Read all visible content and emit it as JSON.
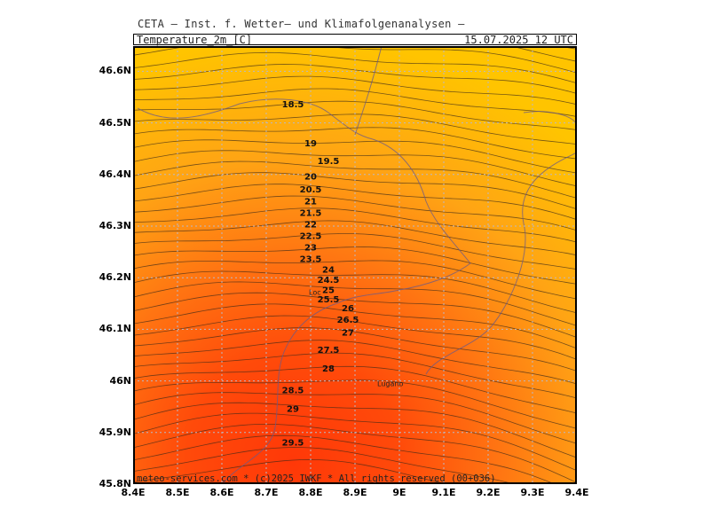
{
  "header": {
    "institute": "CETA — Inst. f. Wetter— und Klimafolgenanalysen —",
    "parameter": "Temperature_2m_[C]",
    "valid_time": "15.07.2025 12 UTC"
  },
  "footer": {
    "credit": "meteo-services.com * (c)2025 IWKF * All rights reserved (00+036)"
  },
  "axes": {
    "x_ticks": [
      "8.4E",
      "8.5E",
      "8.6E",
      "8.7E",
      "8.8E",
      "8.9E",
      "9E",
      "9.1E",
      "9.2E",
      "9.3E",
      "9.4E"
    ],
    "y_ticks": [
      "46.6N",
      "46.5N",
      "46.4N",
      "46.3N",
      "46.2N",
      "46.1N",
      "46N",
      "45.9N",
      "45.8N"
    ]
  },
  "places": [
    {
      "name": "Loc",
      "lon": 8.796,
      "lat": 46.167
    },
    {
      "name": "Lugano",
      "lon": 8.95,
      "lat": 45.99
    }
  ],
  "contour_labels": [
    "18.5",
    "19",
    "19.5",
    "20",
    "20.5",
    "21",
    "21.5",
    "22",
    "22.5",
    "23",
    "23.5",
    "24",
    "24.5",
    "25",
    "25.5",
    "26",
    "26.5",
    "27",
    "27.5",
    "28",
    "28.5",
    "29",
    "29.5"
  ],
  "colors": {
    "warm_max": "#ff3a08",
    "warm_mid": "#ff7a10",
    "cool": "#ffc400"
  },
  "chart_data": {
    "type": "heatmap",
    "title": "Temperature_2m_[C]",
    "xlabel": "",
    "ylabel": "",
    "xlim": [
      8.4,
      9.4
    ],
    "ylim": [
      45.8,
      46.65
    ],
    "grid": true,
    "contour_interval_C": 0.5,
    "contour_labels": [
      {
        "value": 18.5,
        "lon": 8.76,
        "lat": 46.53
      },
      {
        "value": 19,
        "lon": 8.8,
        "lat": 46.455
      },
      {
        "value": 19.5,
        "lon": 8.84,
        "lat": 46.42
      },
      {
        "value": 20,
        "lon": 8.8,
        "lat": 46.39
      },
      {
        "value": 20.5,
        "lon": 8.8,
        "lat": 46.365
      },
      {
        "value": 21,
        "lon": 8.8,
        "lat": 46.342
      },
      {
        "value": 21.5,
        "lon": 8.8,
        "lat": 46.32
      },
      {
        "value": 22,
        "lon": 8.8,
        "lat": 46.297
      },
      {
        "value": 22.5,
        "lon": 8.8,
        "lat": 46.275
      },
      {
        "value": 23,
        "lon": 8.8,
        "lat": 46.253
      },
      {
        "value": 23.5,
        "lon": 8.8,
        "lat": 46.23
      },
      {
        "value": 24,
        "lon": 8.84,
        "lat": 46.21
      },
      {
        "value": 24.5,
        "lon": 8.84,
        "lat": 46.19
      },
      {
        "value": 25,
        "lon": 8.84,
        "lat": 46.17
      },
      {
        "value": 25.5,
        "lon": 8.84,
        "lat": 46.152
      },
      {
        "value": 26,
        "lon": 8.884,
        "lat": 46.135
      },
      {
        "value": 26.5,
        "lon": 8.884,
        "lat": 46.113
      },
      {
        "value": 27,
        "lon": 8.884,
        "lat": 46.088
      },
      {
        "value": 27.5,
        "lon": 8.84,
        "lat": 46.054
      },
      {
        "value": 28,
        "lon": 8.84,
        "lat": 46.018
      },
      {
        "value": 28.5,
        "lon": 8.76,
        "lat": 45.976
      },
      {
        "value": 29,
        "lon": 8.76,
        "lat": 45.94
      },
      {
        "value": 29.5,
        "lon": 8.76,
        "lat": 45.875
      }
    ]
  }
}
